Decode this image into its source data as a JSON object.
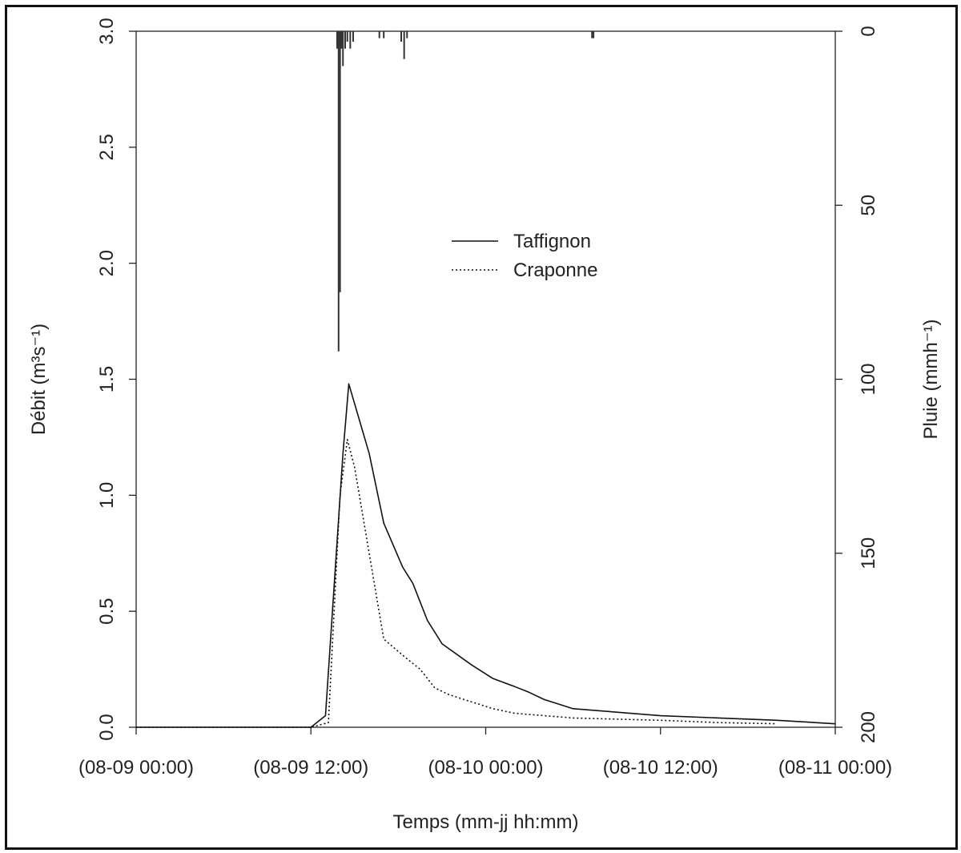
{
  "chart_data": {
    "type": "line",
    "xlabel": "Temps (mm-jj hh:mm)",
    "ylabel": "Débit (m³s⁻¹)",
    "ylabel_right": "Pluie (mmh⁻¹)",
    "x_unit": "hours",
    "xlim": [
      0,
      48
    ],
    "ylim": [
      0,
      3.0
    ],
    "ylim_right_reversed": [
      0,
      200
    ],
    "x_ticks": [
      {
        "value": 0,
        "label": "(08-09 00:00)"
      },
      {
        "value": 12,
        "label": "(08-09 12:00)"
      },
      {
        "value": 24,
        "label": "(08-10 00:00)"
      },
      {
        "value": 36,
        "label": "(08-10 12:00)"
      },
      {
        "value": 48,
        "label": "(08-11 00:00)"
      }
    ],
    "y_ticks": [
      {
        "value": 0.0,
        "label": "0.0"
      },
      {
        "value": 0.5,
        "label": "0.5"
      },
      {
        "value": 1.0,
        "label": "1.0"
      },
      {
        "value": 1.5,
        "label": "1.5"
      },
      {
        "value": 2.0,
        "label": "2.0"
      },
      {
        "value": 2.5,
        "label": "2.5"
      },
      {
        "value": 3.0,
        "label": "3.0"
      }
    ],
    "y_ticks_right": [
      {
        "value": 0,
        "label": "0"
      },
      {
        "value": 50,
        "label": "50"
      },
      {
        "value": 100,
        "label": "100"
      },
      {
        "value": 150,
        "label": "150"
      },
      {
        "value": 200,
        "label": "200"
      }
    ],
    "legend_position": "center",
    "series": [
      {
        "name": "Taffignon",
        "style": "solid",
        "x": [
          0,
          12,
          13.0,
          14.2,
          14.6,
          16.0,
          17.0,
          18.3,
          19.0,
          20.0,
          21.0,
          23.0,
          24.5,
          26.0,
          27.0,
          28.0,
          30.0,
          33.0,
          36.0,
          40.0,
          44.0,
          48.0
        ],
        "y": [
          0.0,
          0.0,
          0.05,
          1.18,
          1.48,
          1.18,
          0.88,
          0.69,
          0.62,
          0.46,
          0.36,
          0.27,
          0.21,
          0.175,
          0.15,
          0.12,
          0.08,
          0.065,
          0.05,
          0.04,
          0.03,
          0.015
        ]
      },
      {
        "name": "Craponne",
        "style": "dotted",
        "x": [
          0,
          12,
          13.2,
          14.0,
          14.5,
          15.0,
          17.0,
          18.5,
          19.5,
          20.5,
          21.5,
          23.0,
          24.5,
          26.0,
          28.0,
          30.0,
          33.0,
          36.0,
          40.0,
          44.0
        ],
        "y": [
          0.0,
          0.0,
          0.02,
          1.0,
          1.24,
          1.12,
          0.38,
          0.3,
          0.25,
          0.17,
          0.14,
          0.11,
          0.08,
          0.06,
          0.05,
          0.04,
          0.035,
          0.03,
          0.02,
          0.015
        ]
      }
    ],
    "rain_series": {
      "name": "Pluie",
      "x": [
        13.8,
        13.9,
        14.0,
        14.1,
        14.2,
        14.35,
        14.5,
        14.7,
        14.9,
        16.7,
        17.0,
        18.2,
        18.4,
        18.6,
        31.3,
        31.4
      ],
      "y": [
        5,
        92,
        75,
        5,
        10,
        5,
        3,
        5,
        3,
        2,
        2,
        3,
        8,
        2,
        2,
        2
      ]
    }
  }
}
